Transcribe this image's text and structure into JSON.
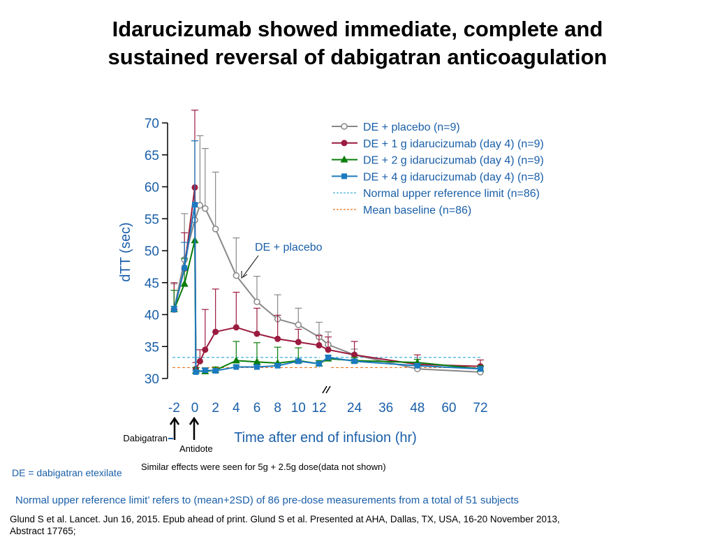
{
  "slide": {
    "title_line1": "Idarucizumab showed immediate, complete and",
    "title_line2": "sustained reversal of dabigatran anticoagulation",
    "footnote_de": "DE = dabigatran etexilate",
    "footnote_similar": "Similar effects were seen for 5g + 2.5g dose(data not shown)",
    "footnote_reference": "Normal upper reference limit’ refers to (mean+2SD) of 86 pre-dose measurements from a total of 51 subjects",
    "citation_line1": "Glund S et al. Lancet. Jun 16, 2015. Epub ahead of print. Glund S et al. Presented at AHA, Dallas, TX, USA, 16-20 November 2013,",
    "citation_line2": "Abstract 17765;"
  },
  "colors": {
    "placebo": "#888888",
    "dose_1g": "#9b1b3f",
    "dose_2g": "#0a7d0a",
    "dose_4g": "#1b7ac0",
    "normal_limit": "#2aa8d8",
    "baseline": "#e8741e",
    "axis_text": "#1a5fa8"
  },
  "chart_data": {
    "type": "line",
    "ylabel": "dTT (sec)",
    "xlabel": "Time after end of infusion (hr)",
    "ylim": [
      30,
      70
    ],
    "yticks": [
      "30",
      "35",
      "40",
      "45",
      "50",
      "55",
      "60",
      "65",
      "70"
    ],
    "xticks_early": [
      "-2",
      "0",
      "2",
      "4",
      "6",
      "8",
      "10",
      "12"
    ],
    "xticks_late": [
      "24",
      "36",
      "48",
      "60",
      "72"
    ],
    "x_axis_break_after": 12,
    "reference_lines": [
      {
        "name": "Normal upper reference limit (n=86)",
        "y": 33.3,
        "style": "dashed"
      },
      {
        "name": "Mean baseline (n=86)",
        "y": 31.7,
        "style": "dashed"
      }
    ],
    "series": [
      {
        "name": "DE + placebo (n=9)",
        "marker": "open-circle",
        "x": [
          -2,
          -1,
          0,
          0.5,
          1,
          2,
          4,
          6,
          8,
          10,
          12,
          14,
          24,
          48,
          72
        ],
        "y": [
          40.8,
          48.6,
          54.8,
          57.1,
          56.6,
          53.4,
          46.1,
          42.0,
          39.3,
          38.4,
          36.5,
          35.3,
          33.7,
          31.5,
          31.0
        ],
        "err": [
          4.0,
          7.2,
          12.4,
          10.9,
          9.4,
          8.9,
          5.9,
          4.0,
          3.8,
          2.6,
          2.3,
          2.0,
          0.9,
          0.4,
          0.5
        ]
      },
      {
        "name": "DE + 1 g idarucizumab  (day 4) (n=9)",
        "marker": "filled-circle",
        "x": [
          -2,
          -1,
          0,
          0.1,
          0.5,
          1,
          2,
          4,
          6,
          8,
          10,
          12,
          14,
          24,
          48,
          72
        ],
        "y": [
          40.8,
          47.2,
          59.9,
          31.5,
          32.7,
          34.5,
          37.3,
          38.0,
          37.0,
          36.2,
          35.7,
          35.2,
          34.5,
          33.7,
          32.2,
          31.9
        ],
        "err": [
          4.2,
          5.6,
          12.1,
          1.0,
          1.8,
          6.3,
          6.7,
          5.5,
          4.0,
          3.7,
          2.0,
          1.5,
          2.0,
          2.1,
          1.5,
          1.0
        ]
      },
      {
        "name": "DE + 2 g idarucizumab  (day 4) (n=9)",
        "marker": "filled-triangle",
        "x": [
          -2,
          -1,
          0,
          0.1,
          1,
          2,
          4,
          6,
          8,
          10,
          12,
          14,
          24,
          48,
          72
        ],
        "y": [
          40.8,
          44.8,
          51.6,
          31.2,
          31.1,
          31.3,
          32.8,
          32.6,
          32.4,
          32.8,
          32.3,
          33.1,
          32.8,
          32.5,
          31.5
        ],
        "err": [
          3.0,
          4.0,
          0.0,
          0.5,
          0.5,
          0.5,
          3.0,
          3.0,
          2.5,
          2.0,
          0.5,
          0.5,
          0.5,
          0.5,
          0.5
        ]
      },
      {
        "name": "DE + 4 g idarucizumab  (day 4) (n=8)",
        "marker": "filled-square",
        "x": [
          -2,
          -1,
          0,
          0.1,
          1,
          2,
          4,
          6,
          8,
          10,
          12,
          14,
          24,
          48,
          72
        ],
        "y": [
          40.8,
          47.3,
          57.2,
          31.0,
          31.3,
          31.2,
          31.8,
          31.8,
          32.0,
          32.7,
          32.3,
          33.3,
          32.7,
          32.0,
          31.5
        ],
        "err": [
          0.5,
          4.0,
          10.0,
          0.3,
          0.3,
          0.3,
          0.3,
          0.3,
          0.3,
          0.3,
          0.3,
          0.3,
          0.3,
          0.3,
          0.3
        ]
      }
    ],
    "annotation": "DE + placebo",
    "arrow_labels": [
      "Dabigatran",
      "Antidote"
    ]
  }
}
